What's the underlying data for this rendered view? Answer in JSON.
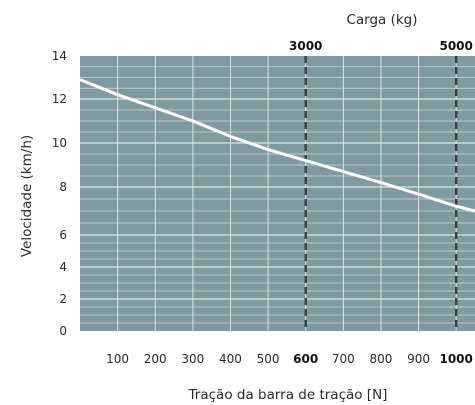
{
  "chart_data": {
    "type": "line",
    "title": "",
    "xlabel": "Tração da barra de tração [N]",
    "ylabel": "Velocidade (km/h)",
    "top_axis_label": "Carga (kg)",
    "xlim": [
      0,
      1050
    ],
    "ylim": [
      0,
      14
    ],
    "x_ticks": [
      {
        "value": 100,
        "label": "100",
        "bold": false
      },
      {
        "value": 200,
        "label": "200",
        "bold": false
      },
      {
        "value": 300,
        "label": "300",
        "bold": false
      },
      {
        "value": 400,
        "label": "400",
        "bold": false
      },
      {
        "value": 500,
        "label": "500",
        "bold": false
      },
      {
        "value": 600,
        "label": "600",
        "bold": true
      },
      {
        "value": 700,
        "label": "700",
        "bold": false
      },
      {
        "value": 800,
        "label": "800",
        "bold": false
      },
      {
        "value": 900,
        "label": "900",
        "bold": false
      },
      {
        "value": 1000,
        "label": "1000",
        "bold": true
      }
    ],
    "y_ticks": [
      {
        "value": 0,
        "label": "0"
      },
      {
        "value": 2,
        "label": "2"
      },
      {
        "value": 4,
        "label": "4"
      },
      {
        "value": 6,
        "label": "6"
      },
      {
        "value": 8,
        "label": "8"
      },
      {
        "value": 10,
        "label": "10"
      },
      {
        "value": 12,
        "label": "12"
      },
      {
        "value": 14,
        "label": "14"
      }
    ],
    "y_scale_note": "nonlinear: 0–6 compressed, 6–14 expanded",
    "grid": true,
    "reference_lines": [
      {
        "x": 600,
        "top_label": "3000"
      },
      {
        "x": 1000,
        "top_label": "5000"
      }
    ],
    "series": [
      {
        "x": [
          0,
          100,
          200,
          300,
          400,
          500,
          600,
          700,
          800,
          900,
          1000,
          1050
        ],
        "y": [
          12.9,
          12.2,
          11.6,
          11.0,
          10.3,
          9.7,
          9.2,
          8.7,
          8.2,
          7.7,
          7.2,
          7.0
        ]
      }
    ],
    "colors": {
      "plot_background": "#7f9ba1",
      "grid": "#dbe5e7",
      "line": "#ffffff",
      "reference_line": "#3a3f42"
    }
  }
}
